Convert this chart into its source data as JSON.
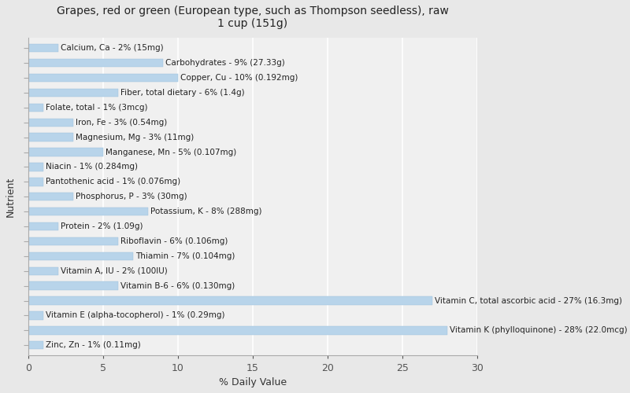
{
  "title": "Grapes, red or green (European type, such as Thompson seedless), raw\n1 cup (151g)",
  "xlabel": "% Daily Value",
  "ylabel": "Nutrient",
  "xlim": [
    0,
    30
  ],
  "xticks": [
    0,
    5,
    10,
    15,
    20,
    25,
    30
  ],
  "background_color": "#e8e8e8",
  "plot_background_color": "#f0f0f0",
  "bar_color": "#b8d4ea",
  "bar_edge_color": "#9bbfd8",
  "label_fontsize": 7.5,
  "nutrients": [
    {
      "label": "Calcium, Ca - 2% (15mg)",
      "value": 2
    },
    {
      "label": "Carbohydrates - 9% (27.33g)",
      "value": 9
    },
    {
      "label": "Copper, Cu - 10% (0.192mg)",
      "value": 10
    },
    {
      "label": "Fiber, total dietary - 6% (1.4g)",
      "value": 6
    },
    {
      "label": "Folate, total - 1% (3mcg)",
      "value": 1
    },
    {
      "label": "Iron, Fe - 3% (0.54mg)",
      "value": 3
    },
    {
      "label": "Magnesium, Mg - 3% (11mg)",
      "value": 3
    },
    {
      "label": "Manganese, Mn - 5% (0.107mg)",
      "value": 5
    },
    {
      "label": "Niacin - 1% (0.284mg)",
      "value": 1
    },
    {
      "label": "Pantothenic acid - 1% (0.076mg)",
      "value": 1
    },
    {
      "label": "Phosphorus, P - 3% (30mg)",
      "value": 3
    },
    {
      "label": "Potassium, K - 8% (288mg)",
      "value": 8
    },
    {
      "label": "Protein - 2% (1.09g)",
      "value": 2
    },
    {
      "label": "Riboflavin - 6% (0.106mg)",
      "value": 6
    },
    {
      "label": "Thiamin - 7% (0.104mg)",
      "value": 7
    },
    {
      "label": "Vitamin A, IU - 2% (100IU)",
      "value": 2
    },
    {
      "label": "Vitamin B-6 - 6% (0.130mg)",
      "value": 6
    },
    {
      "label": "Vitamin C, total ascorbic acid - 27% (16.3mg)",
      "value": 27
    },
    {
      "label": "Vitamin E (alpha-tocopherol) - 1% (0.29mg)",
      "value": 1
    },
    {
      "label": "Vitamin K (phylloquinone) - 28% (22.0mcg)",
      "value": 28
    },
    {
      "label": "Zinc, Zn - 1% (0.11mg)",
      "value": 1
    }
  ]
}
